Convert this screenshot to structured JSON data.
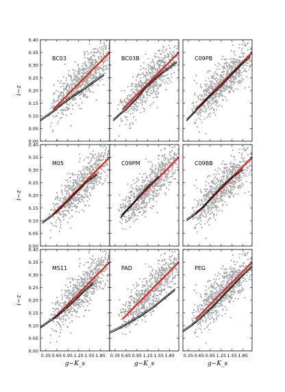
{
  "chart_data": {
    "type": "scatter",
    "layout": "3x3 grid",
    "xlabel": "g−K_s",
    "ylabel": "i−z",
    "xlim": [
      0.2,
      2.1
    ],
    "ylim": [
      0.0,
      0.4
    ],
    "xticks": [
      "0.35",
      "0.65",
      "0.95",
      "1.25",
      "1.55",
      "1.85"
    ],
    "yticks": [
      "0.00",
      "0.05",
      "0.10",
      "0.15",
      "0.20",
      "0.25",
      "0.30",
      "0.35",
      "0.40"
    ],
    "colors": {
      "points": "#a6a6a6",
      "fit": "#e3211c",
      "model": "#000000"
    },
    "fit_line": {
      "x": [
        0.55,
        2.1
      ],
      "y": [
        0.125,
        0.35
      ]
    },
    "panels": [
      {
        "label": "BC03",
        "model_x": [
          0.2,
          0.35,
          0.55,
          0.8,
          1.1,
          1.4,
          1.7,
          1.95
        ],
        "model_y": [
          0.08,
          0.095,
          0.115,
          0.145,
          0.175,
          0.205,
          0.235,
          0.26
        ]
      },
      {
        "label": "BC03B",
        "model_x": [
          0.3,
          0.45,
          0.65,
          0.9,
          1.2,
          1.5,
          1.8,
          2.05
        ],
        "model_y": [
          0.08,
          0.1,
          0.125,
          0.16,
          0.21,
          0.25,
          0.285,
          0.31
        ]
      },
      {
        "label": "C09PB",
        "model_x": [
          0.3,
          0.5,
          0.7,
          0.9,
          1.2,
          1.5,
          1.8,
          2.05
        ],
        "model_y": [
          0.08,
          0.11,
          0.14,
          0.17,
          0.21,
          0.255,
          0.3,
          0.33
        ]
      },
      {
        "label": "M05",
        "model_x": [
          0.25,
          0.45,
          0.7,
          0.95,
          1.25,
          1.5,
          1.75
        ],
        "model_y": [
          0.09,
          0.11,
          0.14,
          0.175,
          0.22,
          0.255,
          0.28
        ]
      },
      {
        "label": "C09PM",
        "model_x": [
          0.5,
          0.65,
          0.85,
          1.05,
          1.3,
          1.55
        ],
        "model_y": [
          0.11,
          0.135,
          0.165,
          0.2,
          0.24,
          0.27
        ]
      },
      {
        "label": "C09BB",
        "model_x": [
          0.3,
          0.5,
          0.75,
          1.0,
          1.3,
          1.6,
          1.85
        ],
        "model_y": [
          0.1,
          0.12,
          0.15,
          0.19,
          0.235,
          0.275,
          0.3
        ]
      },
      {
        "label": "MS11",
        "model_x": [
          0.2,
          0.4,
          0.65,
          0.9,
          1.2,
          1.45,
          1.65
        ],
        "model_y": [
          0.09,
          0.11,
          0.135,
          0.165,
          0.205,
          0.24,
          0.265
        ]
      },
      {
        "label": "PAD",
        "model_x": [
          0.2,
          0.5,
          0.8,
          1.1,
          1.4,
          1.7,
          2.0
        ],
        "model_y": [
          0.07,
          0.09,
          0.115,
          0.14,
          0.17,
          0.205,
          0.24
        ]
      },
      {
        "label": "PEG",
        "model_x": [
          0.2,
          0.45,
          0.7,
          1.0,
          1.3,
          1.6,
          1.9,
          2.1
        ],
        "model_y": [
          0.075,
          0.1,
          0.13,
          0.17,
          0.215,
          0.26,
          0.305,
          0.33
        ]
      }
    ]
  }
}
